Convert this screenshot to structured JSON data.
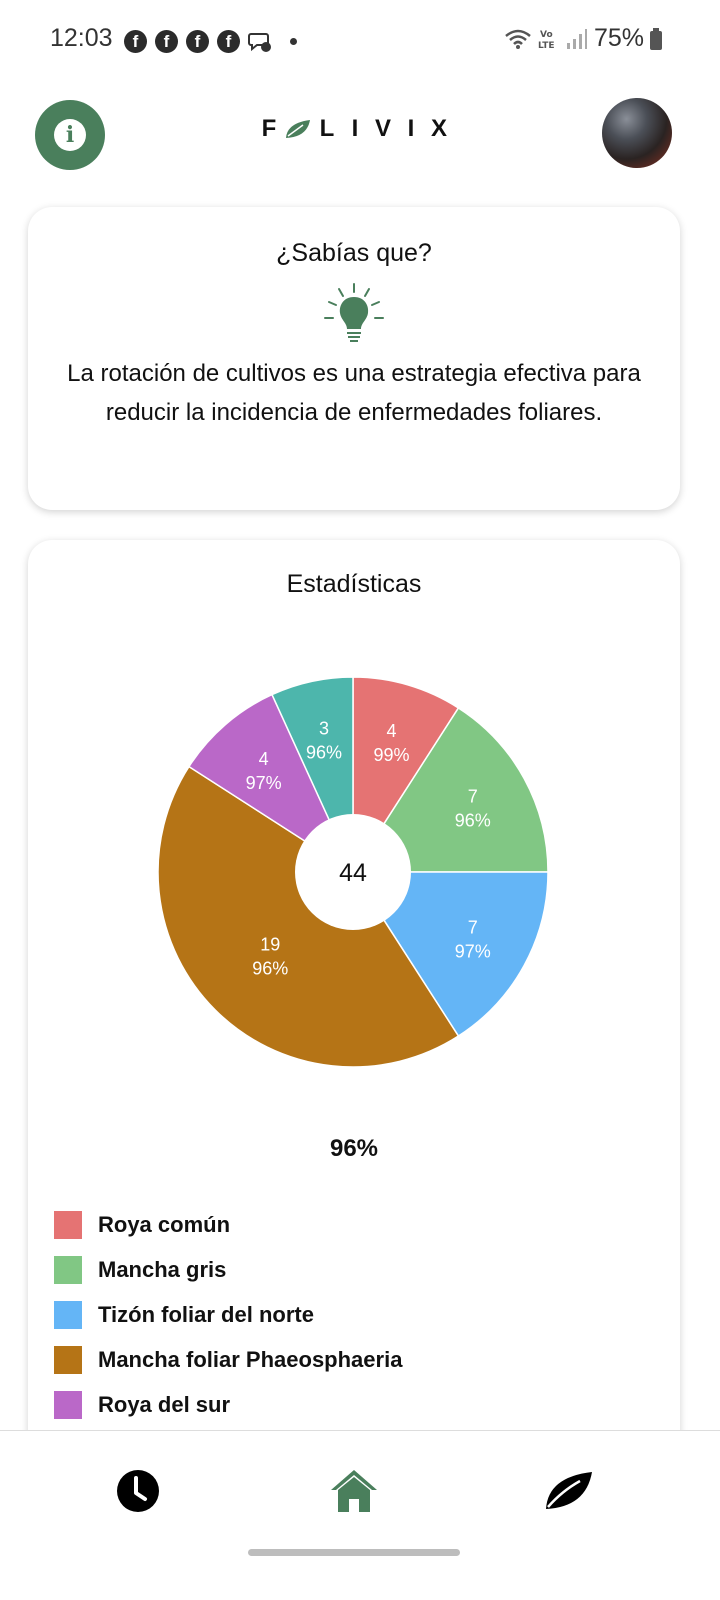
{
  "status_bar": {
    "time": "12:03",
    "battery": "75%",
    "network": "LTE",
    "notifications": [
      "facebook-icon",
      "facebook-icon",
      "facebook-icon",
      "facebook-icon",
      "messenger-icon"
    ]
  },
  "header": {
    "logo_letters": [
      "F",
      "L",
      "I",
      "V",
      "I",
      "X"
    ],
    "info_glyph": "i"
  },
  "tip": {
    "title": "¿Sabías que?",
    "text": "La rotación de cultivos es una estrategia efectiva para reducir la incidencia de enfermedades foliares."
  },
  "stats": {
    "title": "Estadísticas",
    "average_confidence": "96%"
  },
  "chart_data": {
    "type": "pie",
    "variant": "donut",
    "center_label": "44",
    "slices": [
      {
        "name": "Roya común",
        "count": 4,
        "confidence": "99%",
        "color": "#e57373"
      },
      {
        "name": "Mancha gris",
        "count": 7,
        "confidence": "96%",
        "color": "#81c784"
      },
      {
        "name": "Tizón foliar del norte",
        "count": 7,
        "confidence": "97%",
        "color": "#64b5f6"
      },
      {
        "name": "Mancha foliar Phaeosphaeria",
        "count": 19,
        "confidence": "96%",
        "color": "#b57416"
      },
      {
        "name": "Roya del sur",
        "count": 4,
        "confidence": "97%",
        "color": "#ba68c8"
      },
      {
        "name": "",
        "count": 3,
        "confidence": "96%",
        "color": "#4db6ac"
      }
    ],
    "legend_placement": "bottom"
  },
  "nav": {
    "items": [
      {
        "icon": "clock-icon",
        "active": false
      },
      {
        "icon": "home-icon",
        "active": true,
        "color": "#4a7f5c"
      },
      {
        "icon": "leaf-icon",
        "active": false
      }
    ]
  },
  "colors": {
    "brand": "#4a7f5c"
  }
}
